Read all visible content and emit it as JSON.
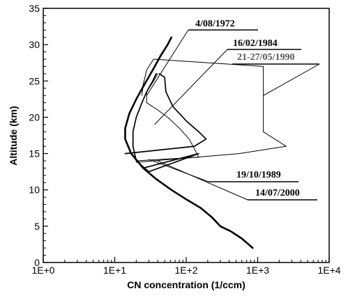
{
  "chart_data": {
    "type": "line",
    "title": "",
    "xlabel": "CN concentration (1/ccm)",
    "ylabel": "Altitude (km)",
    "x_scale": "log",
    "xlim": [
      1,
      10000
    ],
    "ylim": [
      0,
      35
    ],
    "x_ticks": [
      1,
      10,
      100,
      1000,
      10000
    ],
    "x_tick_labels": [
      "1E+0",
      "1E+1",
      "1E+2",
      "1E+3",
      "1E+4"
    ],
    "y_ticks": [
      0,
      5,
      10,
      15,
      20,
      25,
      30,
      35
    ],
    "y_tick_labels": [
      "0",
      "5",
      "10",
      "15",
      "20",
      "25",
      "30",
      "35"
    ],
    "grid": false,
    "series": [
      {
        "name": "14/07/2000",
        "color": "#000000",
        "style": "thick",
        "points": [
          [
            850,
            2
          ],
          [
            600,
            3.3
          ],
          [
            420,
            4.3
          ],
          [
            300,
            5
          ],
          [
            230,
            6.2
          ],
          [
            160,
            7.5
          ],
          [
            100,
            8.7
          ],
          [
            62,
            10
          ],
          [
            38,
            11.5
          ],
          [
            25,
            13
          ],
          [
            17,
            15
          ],
          [
            14,
            17
          ],
          [
            14,
            18.5
          ],
          [
            16,
            20.5
          ],
          [
            20,
            22.5
          ],
          [
            26,
            24.5
          ],
          [
            34,
            26.5
          ],
          [
            44,
            28.5
          ],
          [
            55,
            30
          ],
          [
            62,
            31
          ]
        ]
      },
      {
        "name": "19/10/1989",
        "color": "#000000",
        "style": "medium",
        "points": [
          [
            25,
            13
          ],
          [
            150,
            15
          ],
          [
            30,
            12.5
          ],
          [
            20,
            14
          ],
          [
            18,
            16
          ],
          [
            18,
            18
          ],
          [
            20,
            20
          ],
          [
            24,
            22
          ],
          [
            28,
            23.5
          ],
          [
            34,
            25
          ],
          [
            38,
            26
          ]
        ]
      },
      {
        "name": "4/08/1972",
        "color": "#000000",
        "style": "medium",
        "points": [
          [
            14,
            15
          ],
          [
            130,
            16
          ],
          [
            190,
            17
          ],
          [
            150,
            18
          ],
          [
            100,
            19.5
          ],
          [
            65,
            21.5
          ],
          [
            52,
            23.5
          ],
          [
            50,
            25.5
          ],
          [
            42,
            26
          ]
        ]
      },
      {
        "name": "16/02/1984",
        "color": "#000000",
        "style": "thin",
        "points": [
          [
            20,
            14
          ],
          [
            150,
            14.5
          ],
          [
            110,
            17
          ],
          [
            80,
            18.5
          ],
          [
            55,
            20
          ],
          [
            40,
            21
          ],
          [
            28,
            22
          ],
          [
            28,
            23.5
          ],
          [
            35,
            25
          ],
          [
            40,
            26
          ]
        ]
      },
      {
        "name": "21-27/05/1990",
        "color": "#000000",
        "style": "thin",
        "points": [
          [
            20,
            13.8
          ],
          [
            550,
            15
          ],
          [
            2500,
            16
          ],
          [
            1200,
            18
          ],
          [
            1200,
            27
          ],
          [
            35,
            28
          ],
          [
            28,
            26.5
          ],
          [
            25,
            24.5
          ],
          [
            24,
            23
          ]
        ]
      }
    ],
    "annotations": [
      {
        "text": "4/08/1972",
        "color": "#000000"
      },
      {
        "text": "16/02/1984",
        "color": "#000000"
      },
      {
        "text": "21-27/05/1990",
        "color": "#555555"
      },
      {
        "text": "19/10/1989",
        "color": "#000000"
      },
      {
        "text": "14/07/2000",
        "color": "#000000"
      }
    ]
  }
}
